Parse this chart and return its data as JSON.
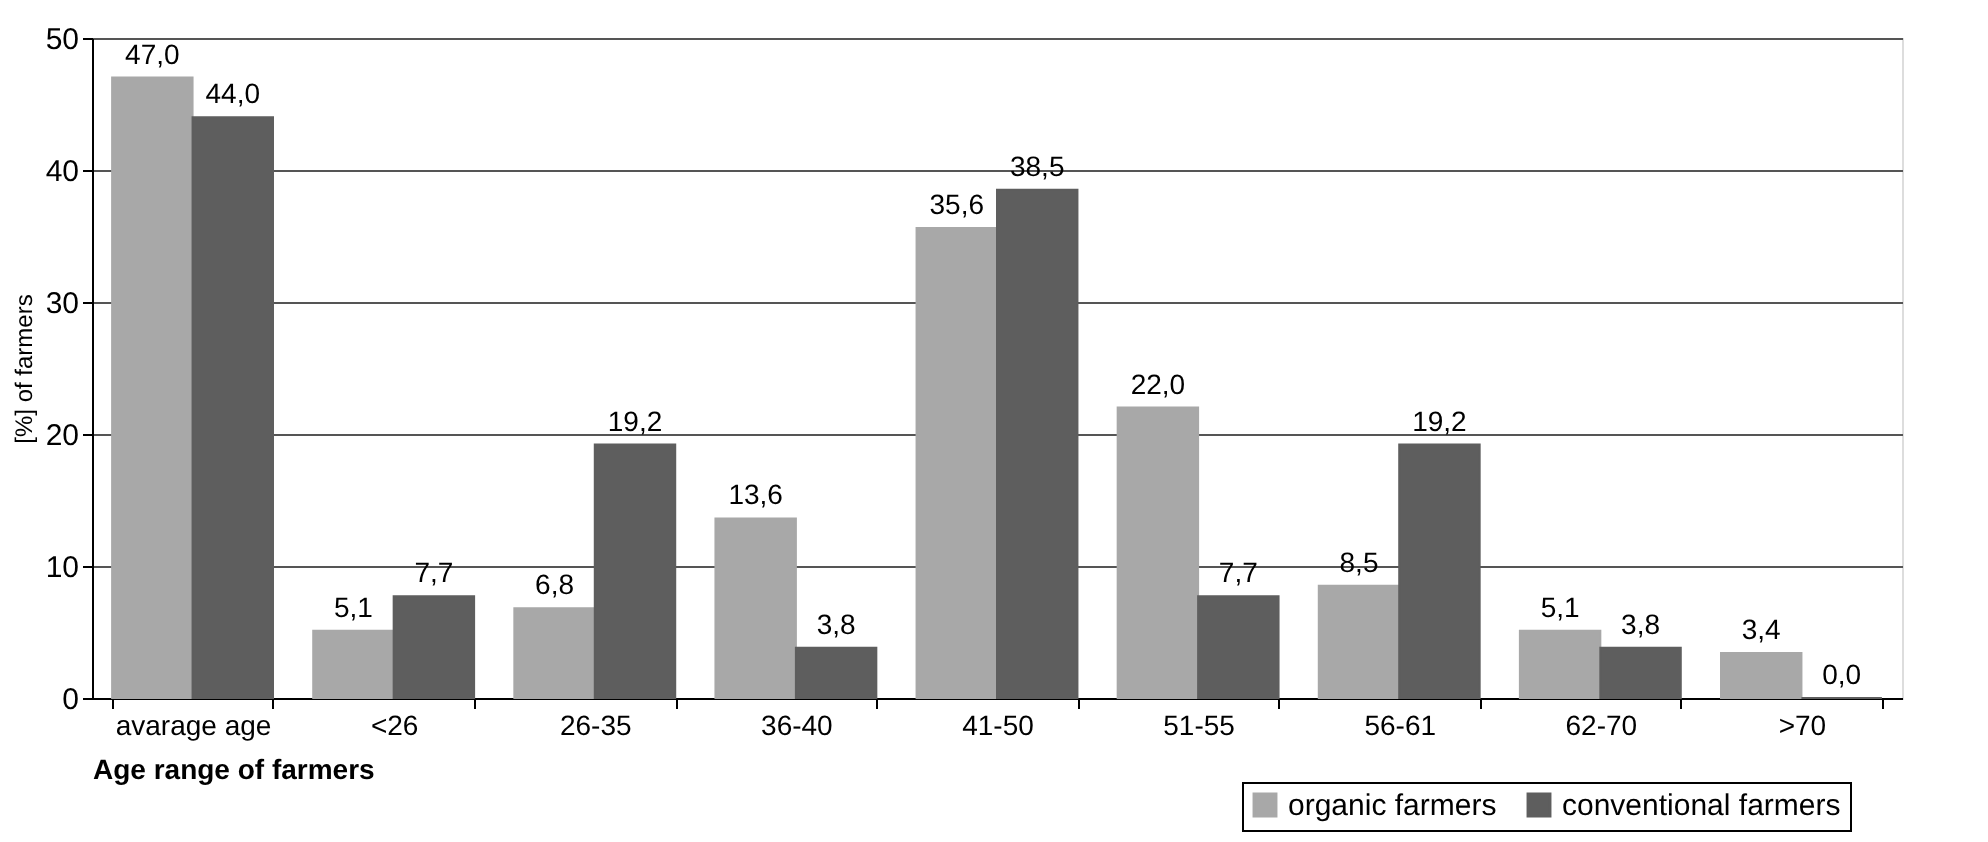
{
  "chart_data": {
    "type": "bar",
    "xlabel": "Age range of farmers",
    "ylabel": "[%] of farmers",
    "categories": [
      "avarage age",
      "<26",
      "26-35",
      "36-40",
      "41-50",
      "51-55",
      "56-61",
      "62-70",
      ">70"
    ],
    "series": [
      {
        "name": "organic farmers",
        "color": "#a8a8a8",
        "values": [
          47.0,
          5.1,
          6.8,
          13.6,
          35.6,
          22.0,
          8.5,
          5.1,
          3.4
        ],
        "value_labels": [
          "47,0",
          "5,1",
          "6,8",
          "13,6",
          "35,6",
          "22,0",
          "8,5",
          "5,1",
          "3,4"
        ]
      },
      {
        "name": "conventional farmers",
        "color": "#5e5e5e",
        "values": [
          44.0,
          7.7,
          19.2,
          3.8,
          38.5,
          7.7,
          19.2,
          3.8,
          0.0
        ],
        "value_labels": [
          "44,0",
          "7,7",
          "19,2",
          "3,8",
          "38,5",
          "7,7",
          "19,2",
          "3,8",
          "0,0"
        ]
      }
    ],
    "ylim": [
      0,
      50
    ],
    "yticks": [
      0,
      10,
      20,
      30,
      40,
      50
    ],
    "grid": "y",
    "legend": "bottom right"
  }
}
